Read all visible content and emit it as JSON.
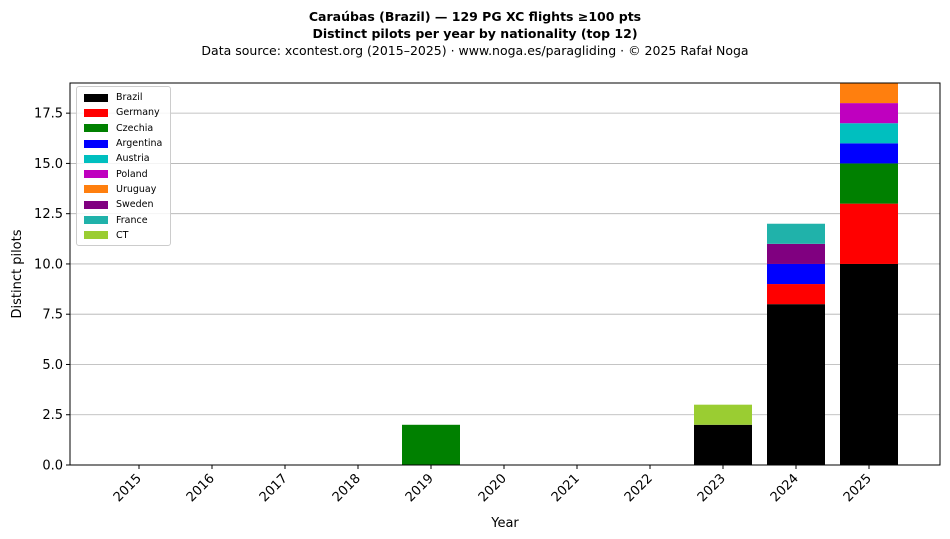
{
  "header": {
    "title_line1": "Caraúbas (Brazil)  —  129 PG XC flights ≥100 pts",
    "title_line2": "Distinct pilots per year by nationality (top 12)",
    "source_line": "Data source: xcontest.org (2015–2025)  ·  www.noga.es/paragliding  ·  © 2025 Rafał Noga"
  },
  "chart_data": {
    "type": "bar",
    "stacked": true,
    "categories": [
      "2015",
      "2016",
      "2017",
      "2018",
      "2019",
      "2020",
      "2021",
      "2022",
      "2023",
      "2024",
      "2025"
    ],
    "series": [
      {
        "name": "Brazil",
        "color": "#000000",
        "values": [
          0,
          0,
          0,
          0,
          0,
          0,
          0,
          0,
          2,
          8,
          10
        ]
      },
      {
        "name": "Germany",
        "color": "#ff0000",
        "values": [
          0,
          0,
          0,
          0,
          0,
          0,
          0,
          0,
          0,
          1,
          3
        ]
      },
      {
        "name": "Czechia",
        "color": "#008000",
        "values": [
          0,
          0,
          0,
          0,
          2,
          0,
          0,
          0,
          0,
          0,
          2
        ]
      },
      {
        "name": "Argentina",
        "color": "#0000ff",
        "values": [
          0,
          0,
          0,
          0,
          0,
          0,
          0,
          0,
          0,
          1,
          1
        ]
      },
      {
        "name": "Austria",
        "color": "#00bfbf",
        "values": [
          0,
          0,
          0,
          0,
          0,
          0,
          0,
          0,
          0,
          0,
          1
        ]
      },
      {
        "name": "Poland",
        "color": "#bf00bf",
        "values": [
          0,
          0,
          0,
          0,
          0,
          0,
          0,
          0,
          0,
          0,
          1
        ]
      },
      {
        "name": "Uruguay",
        "color": "#ff7f0e",
        "values": [
          0,
          0,
          0,
          0,
          0,
          0,
          0,
          0,
          0,
          0,
          1
        ]
      },
      {
        "name": "Sweden",
        "color": "#800080",
        "values": [
          0,
          0,
          0,
          0,
          0,
          0,
          0,
          0,
          0,
          1,
          0
        ]
      },
      {
        "name": "France",
        "color": "#20b2aa",
        "values": [
          0,
          0,
          0,
          0,
          0,
          0,
          0,
          0,
          0,
          1,
          0
        ]
      },
      {
        "name": "CT",
        "color": "#9acd32",
        "values": [
          0,
          0,
          0,
          0,
          0,
          0,
          0,
          0,
          1,
          0,
          0
        ]
      }
    ],
    "xlabel": "Year",
    "ylabel": "Distinct pilots",
    "ylim": [
      0,
      19
    ],
    "yticks": [
      0,
      2.5,
      5,
      7.5,
      10,
      12.5,
      15,
      17.5
    ],
    "ytick_labels": [
      "0.0",
      "2.5",
      "5.0",
      "7.5",
      "10.0",
      "12.5",
      "15.0",
      "17.5"
    ],
    "grid": "horizontal",
    "legend_position": "top-left"
  }
}
